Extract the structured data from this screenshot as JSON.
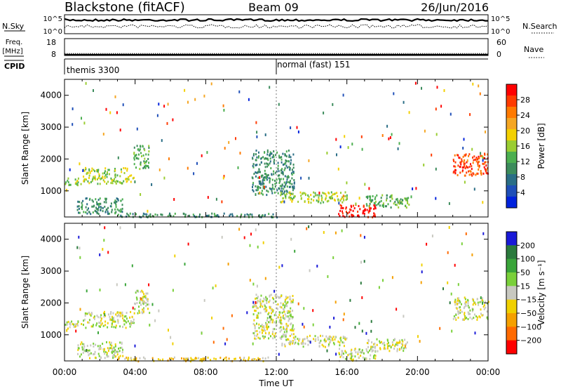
{
  "header": {
    "title": "Blackstone (fitACF)",
    "beam": "Beam 09",
    "date": "26/Jun/2016"
  },
  "colors": {
    "power": [
      "#0022dd",
      "#1f4fb8",
      "#2a6e86",
      "#3c8c5c",
      "#4caf50",
      "#9acd32",
      "#f3d000",
      "#f5a623",
      "#ff7a00",
      "#ff3b00",
      "#ff0000"
    ],
    "velocity": [
      "#1a1ad8",
      "#2b7a3d",
      "#3aa53a",
      "#7ad03a",
      "#c8c8c0",
      "#f0d000",
      "#f5a000",
      "#ff6a00",
      "#ff0000"
    ]
  },
  "chart_data": [
    {
      "type": "line",
      "name": "noise-panel",
      "left_label": "N.Sky",
      "right_label": "N.Search",
      "left_ticks": [
        "10^5",
        "10^0"
      ],
      "right_ticks": [
        "10^5",
        "10^0"
      ]
    },
    {
      "type": "line",
      "name": "freq-panel",
      "left_label": "Freq.",
      "left_unit": "[MHz]",
      "right_label": "Nave",
      "left_ticks": [
        "18",
        "8"
      ],
      "right_ticks": [
        "60",
        "0"
      ],
      "freq_value": 8.4,
      "nave_value": 7
    },
    {
      "type": "table",
      "name": "cpid-panel",
      "label": "CPID",
      "segments": [
        {
          "start_hour": 0,
          "end_hour": 12,
          "text": "themis 3300"
        },
        {
          "start_hour": 12,
          "end_hour": 24,
          "text": "normal (fast) 151"
        }
      ]
    },
    {
      "type": "heatmap",
      "name": "power-panel",
      "ylabel": "Slant Range [km]",
      "ylim": [
        180,
        4500
      ],
      "yticks": [
        "1000",
        "2000",
        "3000",
        "4000"
      ],
      "xlim": [
        0,
        24
      ],
      "colorbar_label": "Power [dB]",
      "colorbar_ticks": [
        "4",
        "8",
        "12",
        "16",
        "20",
        "24",
        "28"
      ],
      "features": [
        {
          "hours": [
            0.0,
            1.0
          ],
          "range": [
            1200,
            1450
          ],
          "level": 5
        },
        {
          "hours": [
            1.0,
            3.9
          ],
          "range": [
            1250,
            1750
          ],
          "level": 5
        },
        {
          "hours": [
            3.9,
            4.8
          ],
          "range": [
            1700,
            2450
          ],
          "level": 4
        },
        {
          "hours": [
            0.7,
            3.3
          ],
          "range": [
            300,
            800
          ],
          "level": 3
        },
        {
          "hours": [
            3.0,
            12.0
          ],
          "range": [
            200,
            320
          ],
          "level": 3
        },
        {
          "hours": [
            10.6,
            13.0
          ],
          "range": [
            900,
            2300
          ],
          "level": 3
        },
        {
          "hours": [
            12.2,
            16.0
          ],
          "range": [
            650,
            1000
          ],
          "level": 5
        },
        {
          "hours": [
            15.5,
            17.6
          ],
          "range": [
            200,
            600
          ],
          "level": 10
        },
        {
          "hours": [
            17.0,
            19.5
          ],
          "range": [
            500,
            900
          ],
          "level": 4
        },
        {
          "hours": [
            22.0,
            24.0
          ],
          "range": [
            1500,
            2200
          ],
          "level": 9
        }
      ]
    },
    {
      "type": "heatmap",
      "name": "velocity-panel",
      "ylabel": "Slant Range [km]",
      "ylim": [
        180,
        4500
      ],
      "yticks": [
        "1000",
        "2000",
        "3000",
        "4000"
      ],
      "xlim": [
        0,
        24
      ],
      "xticks": [
        "00:00",
        "04:00",
        "08:00",
        "12:00",
        "16:00",
        "20:00",
        "00:00"
      ],
      "xlabel": "Time UT",
      "colorbar_label": "Velocity [m s⁻¹]",
      "colorbar_ticks": [
        "200",
        "100",
        "50",
        "15",
        "−15",
        "−50",
        "−100",
        "−200"
      ],
      "features": [
        {
          "hours": [
            0.0,
            1.0
          ],
          "range": [
            1200,
            1450
          ],
          "level": 4
        },
        {
          "hours": [
            1.0,
            3.9
          ],
          "range": [
            1250,
            1750
          ],
          "level": 4
        },
        {
          "hours": [
            3.9,
            4.8
          ],
          "range": [
            1700,
            2450
          ],
          "level": 4
        },
        {
          "hours": [
            0.7,
            3.3
          ],
          "range": [
            300,
            800
          ],
          "level": 4
        },
        {
          "hours": [
            3.0,
            12.0
          ],
          "range": [
            200,
            320
          ],
          "level": 5
        },
        {
          "hours": [
            10.6,
            13.0
          ],
          "range": [
            900,
            2300
          ],
          "level": 4
        },
        {
          "hours": [
            12.2,
            16.0
          ],
          "range": [
            650,
            1000
          ],
          "level": 4
        },
        {
          "hours": [
            15.5,
            17.6
          ],
          "range": [
            200,
            600
          ],
          "level": 4
        },
        {
          "hours": [
            17.0,
            19.5
          ],
          "range": [
            500,
            900
          ],
          "level": 4
        },
        {
          "hours": [
            22.0,
            24.0
          ],
          "range": [
            1500,
            2200
          ],
          "level": 4
        }
      ]
    }
  ]
}
